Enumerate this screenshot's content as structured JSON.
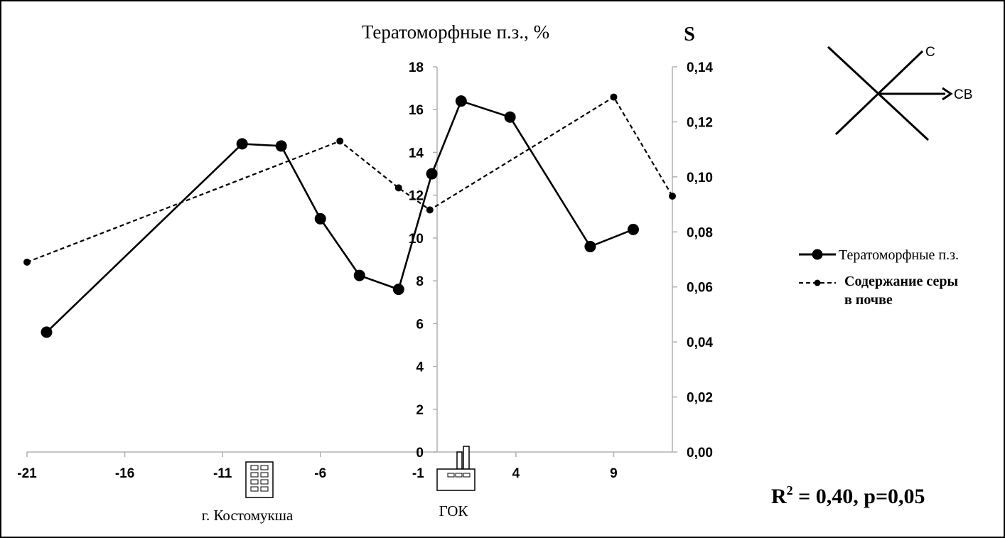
{
  "chart_data": {
    "type": "line",
    "title": "Тератоморфные п.з., %",
    "y2_axis_title": "S",
    "x_ticks": [
      "-21",
      "-16",
      "-11",
      "-6",
      "-1",
      "4",
      "9"
    ],
    "xlim": [
      -21,
      12
    ],
    "y1_ticks": [
      "0",
      "2",
      "4",
      "6",
      "8",
      "10",
      "12",
      "14",
      "16",
      "18"
    ],
    "y1lim": [
      0,
      18
    ],
    "y2_ticks": [
      "0,00",
      "0,02",
      "0,04",
      "0,06",
      "0,08",
      "0,10",
      "0,12",
      "0,14"
    ],
    "y2lim": [
      0,
      0.14
    ],
    "grid": false,
    "legend_position": "right",
    "series": [
      {
        "name": "Тератоморфные п.з.",
        "axis": "left",
        "style": "solid",
        "x": [
          -20,
          -10,
          -8,
          -6,
          -4,
          -2,
          -0.3,
          1.2,
          3.7,
          7.8,
          10
        ],
        "y": [
          5.6,
          14.4,
          14.3,
          10.9,
          8.25,
          7.6,
          13.0,
          16.4,
          15.65,
          9.6,
          10.4
        ]
      },
      {
        "name": "Содержание серы в почве",
        "legend_lines": [
          "Содержание серы",
          "в почве"
        ],
        "axis": "right",
        "style": "dashed",
        "x": [
          -21,
          -5,
          -2,
          -0.4,
          9,
          12
        ],
        "y": [
          0.069,
          0.113,
          0.096,
          0.088,
          0.129,
          0.093
        ]
      }
    ],
    "annotations": {
      "city_label": "г. Костомукша",
      "plant_label": "ГОК",
      "stat": "R² = 0,40, p=0,05",
      "stat_main": "R",
      "stat_sup": "2",
      "stat_rest": " = 0,40, p=0,05"
    },
    "compass": {
      "north_label": "С",
      "northeast_label": "СВ"
    }
  }
}
